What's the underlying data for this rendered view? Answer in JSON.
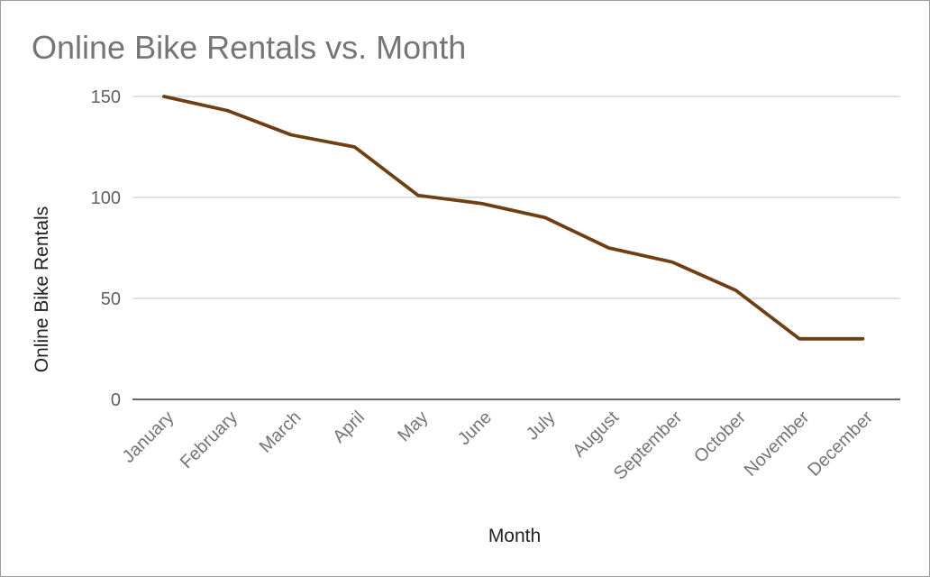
{
  "chart_data": {
    "type": "line",
    "title": "Online Bike Rentals vs. Month",
    "xlabel": "Month",
    "ylabel": "Online Bike Rentals",
    "categories": [
      "January",
      "February",
      "March",
      "April",
      "May",
      "June",
      "July",
      "August",
      "September",
      "October",
      "November",
      "December"
    ],
    "series": [
      {
        "values": [
          150,
          143,
          131,
          125,
          101,
          97,
          90,
          75,
          68,
          54,
          30,
          30
        ]
      }
    ],
    "ylim": [
      0,
      150
    ],
    "yticks": [
      "0",
      "50",
      "100",
      "150"
    ],
    "grid": true,
    "legend": "none",
    "colors": {
      "line": "#6d3f13"
    }
  }
}
